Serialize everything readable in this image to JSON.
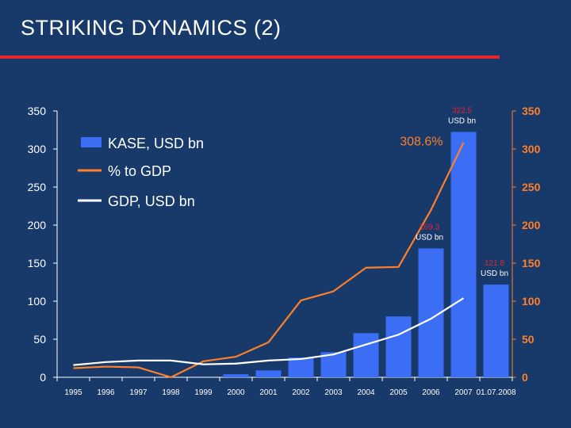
{
  "page": {
    "title": "STRIKING DYNAMICS (2)"
  },
  "chart_data": {
    "type": "bar",
    "categories": [
      "1995",
      "1996",
      "1997",
      "1998",
      "1999",
      "2000",
      "2001",
      "2002",
      "2003",
      "2004",
      "2005",
      "2006",
      "2007",
      "01.07.2008"
    ],
    "ylim": [
      0,
      350
    ],
    "y2lim": [
      0,
      350
    ],
    "yticks": [
      0,
      50,
      100,
      150,
      200,
      250,
      300,
      350
    ],
    "y2ticks": [
      0,
      50,
      100,
      150,
      200,
      250,
      300,
      350
    ],
    "series": [
      {
        "name": "KASE, USD bn",
        "kind": "bar",
        "axis": "left",
        "color": "#3b6ef5",
        "values": [
          0,
          0,
          0,
          0,
          0,
          4,
          9,
          26,
          33,
          58,
          80,
          169.3,
          322.5,
          121.8
        ]
      },
      {
        "name": "% to GDP",
        "kind": "line",
        "axis": "right",
        "color": "#ff7f2a",
        "values": [
          12,
          14,
          13,
          0,
          21,
          27,
          46,
          101,
          113,
          144,
          145,
          220,
          308.6,
          null
        ]
      },
      {
        "name": "GDP, USD bn",
        "kind": "line",
        "axis": "left",
        "color": "#ffffff",
        "values": [
          16,
          20,
          22,
          22,
          17,
          18,
          22,
          24,
          30,
          43,
          56,
          77,
          104,
          null
        ]
      }
    ],
    "annotations": [
      {
        "text": "322.5",
        "text2": "USD bn",
        "category": "2007",
        "value": 322.5,
        "style": "bar"
      },
      {
        "text": "169.3",
        "text2": "USD bn",
        "category": "2006",
        "value": 169.3,
        "style": "bar"
      },
      {
        "text": "121.8",
        "text2": "USD bn",
        "category": "01.07.2008",
        "value": 121.8,
        "style": "bar"
      },
      {
        "text": "308.6%",
        "category": "2007",
        "value": 308.6,
        "style": "pct"
      }
    ],
    "legend": "top-left",
    "grid": false
  },
  "colors": {
    "background": "#173a6b",
    "rule": "#e8232a",
    "bar": "#3b6ef5",
    "pct_line": "#ff7f2a",
    "gdp_line": "#ffffff"
  }
}
